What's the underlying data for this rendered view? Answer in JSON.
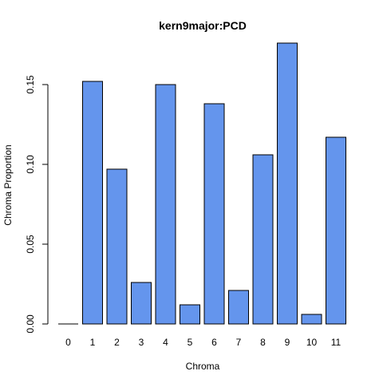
{
  "chart_data": {
    "type": "bar",
    "title": "kern9major:PCD",
    "xlabel": "Chroma",
    "ylabel": "Chroma Proportion",
    "categories": [
      "0",
      "1",
      "2",
      "3",
      "4",
      "5",
      "6",
      "7",
      "8",
      "9",
      "10",
      "11"
    ],
    "values": [
      0.0,
      0.152,
      0.097,
      0.026,
      0.15,
      0.012,
      0.138,
      0.021,
      0.106,
      0.176,
      0.006,
      0.117
    ],
    "ylim": [
      0,
      0.176
    ],
    "yticks": [
      0.0,
      0.05,
      0.1,
      0.15
    ],
    "ytick_labels": [
      "0.00",
      "0.05",
      "0.10",
      "0.15"
    ],
    "bar_color": "#6495ED",
    "bar_border_color": "#000000",
    "grid": false,
    "legend": false
  }
}
